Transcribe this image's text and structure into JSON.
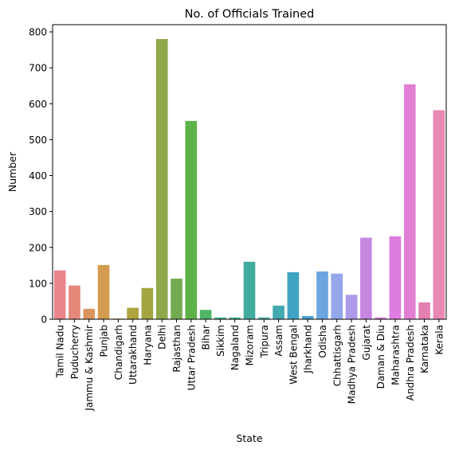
{
  "chart_data": {
    "type": "bar",
    "title": "No. of Officials Trained",
    "xlabel": "State",
    "ylabel": "Number",
    "ylim": [
      0,
      820
    ],
    "yticks": [
      0,
      100,
      200,
      300,
      400,
      500,
      600,
      700,
      800
    ],
    "grid": false,
    "categories": [
      "Tamil Nadu",
      "Puducherry",
      "Jammu & Kashmir",
      "Punjab",
      "Chandigarh",
      "Uttarakhand",
      "Haryana",
      "Delhi",
      "Rajasthan",
      "Uttar Pradesh",
      "Bihar",
      "Sikkim",
      "Nagaland",
      "Mizoram",
      "Tripura",
      "Assam",
      "West Bengal",
      "Jharkhand",
      "Odisha",
      "Chhattisgarh",
      "Madhya Pradesh",
      "Gujarat",
      "Daman & Diu",
      "Maharashtra",
      "Andhra Pradesh",
      "Karnataka",
      "Kerala"
    ],
    "values": [
      136,
      94,
      29,
      151,
      2,
      32,
      87,
      780,
      113,
      552,
      26,
      5,
      5,
      160,
      5,
      38,
      131,
      9,
      133,
      127,
      68,
      227,
      5,
      231,
      654,
      47,
      582
    ],
    "colors": [
      "#e9858b",
      "#e4887a",
      "#d9945e",
      "#d39b50",
      "#bd9f47",
      "#ada43f",
      "#a2a540",
      "#8ea84b",
      "#72ac50",
      "#5cb248",
      "#4db563",
      "#47b08a",
      "#44ae94",
      "#41ac9e",
      "#3faca6",
      "#43a8b0",
      "#3fa4c1",
      "#4d9fd1",
      "#6ca5e0",
      "#94a7eb",
      "#ad98e9",
      "#c586e2",
      "#d47ed8",
      "#de7ddf",
      "#e27fd5",
      "#e47fb2",
      "#e98ab4"
    ]
  }
}
